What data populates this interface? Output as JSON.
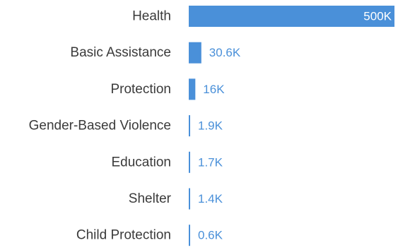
{
  "chart_data": {
    "type": "bar",
    "orientation": "horizontal",
    "categories": [
      "Health",
      "Basic Assistance",
      "Protection",
      "Gender-Based Violence",
      "Education",
      "Shelter",
      "Child Protection"
    ],
    "values": [
      500000,
      30600,
      16000,
      1900,
      1700,
      1400,
      600
    ],
    "value_labels": [
      "500K",
      "30.6K",
      "16K",
      "1.9K",
      "1.7K",
      "1.4K",
      "0.6K"
    ],
    "title": "",
    "xlabel": "",
    "ylabel": "",
    "xlim": [
      0,
      500000
    ],
    "grid": false,
    "legend": "none",
    "colors": {
      "bar": "#4a90d9",
      "value_text": "#4a90d9",
      "value_text_inside": "#ffffff",
      "category_text": "#3a3a3a"
    }
  }
}
